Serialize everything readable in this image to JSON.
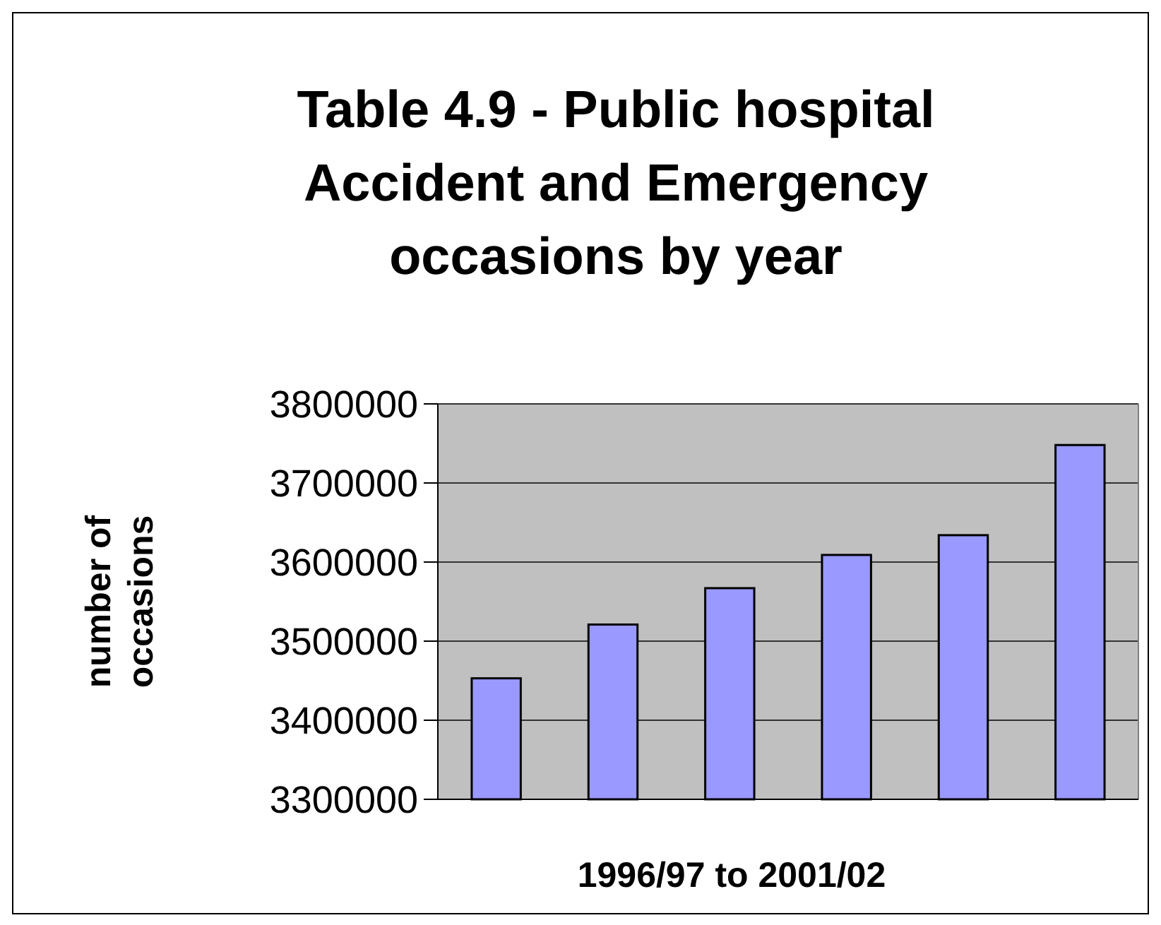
{
  "chart_data": {
    "type": "bar",
    "title": "Table 4.9 - Public hospital Accident and Emergency occasions by year",
    "xlabel": "1996/97 to 2001/02",
    "ylabel": "number of occasions",
    "categories": [
      null,
      null,
      null,
      null,
      null,
      null
    ],
    "values": [
      3453000,
      3521000,
      3567000,
      3609000,
      3634000,
      3748000
    ],
    "color": "#9999ff",
    "ylim": [
      3300000,
      3800000
    ],
    "yticks": [
      3300000,
      3400000,
      3500000,
      3600000,
      3700000,
      3800000
    ],
    "grid": "y"
  }
}
